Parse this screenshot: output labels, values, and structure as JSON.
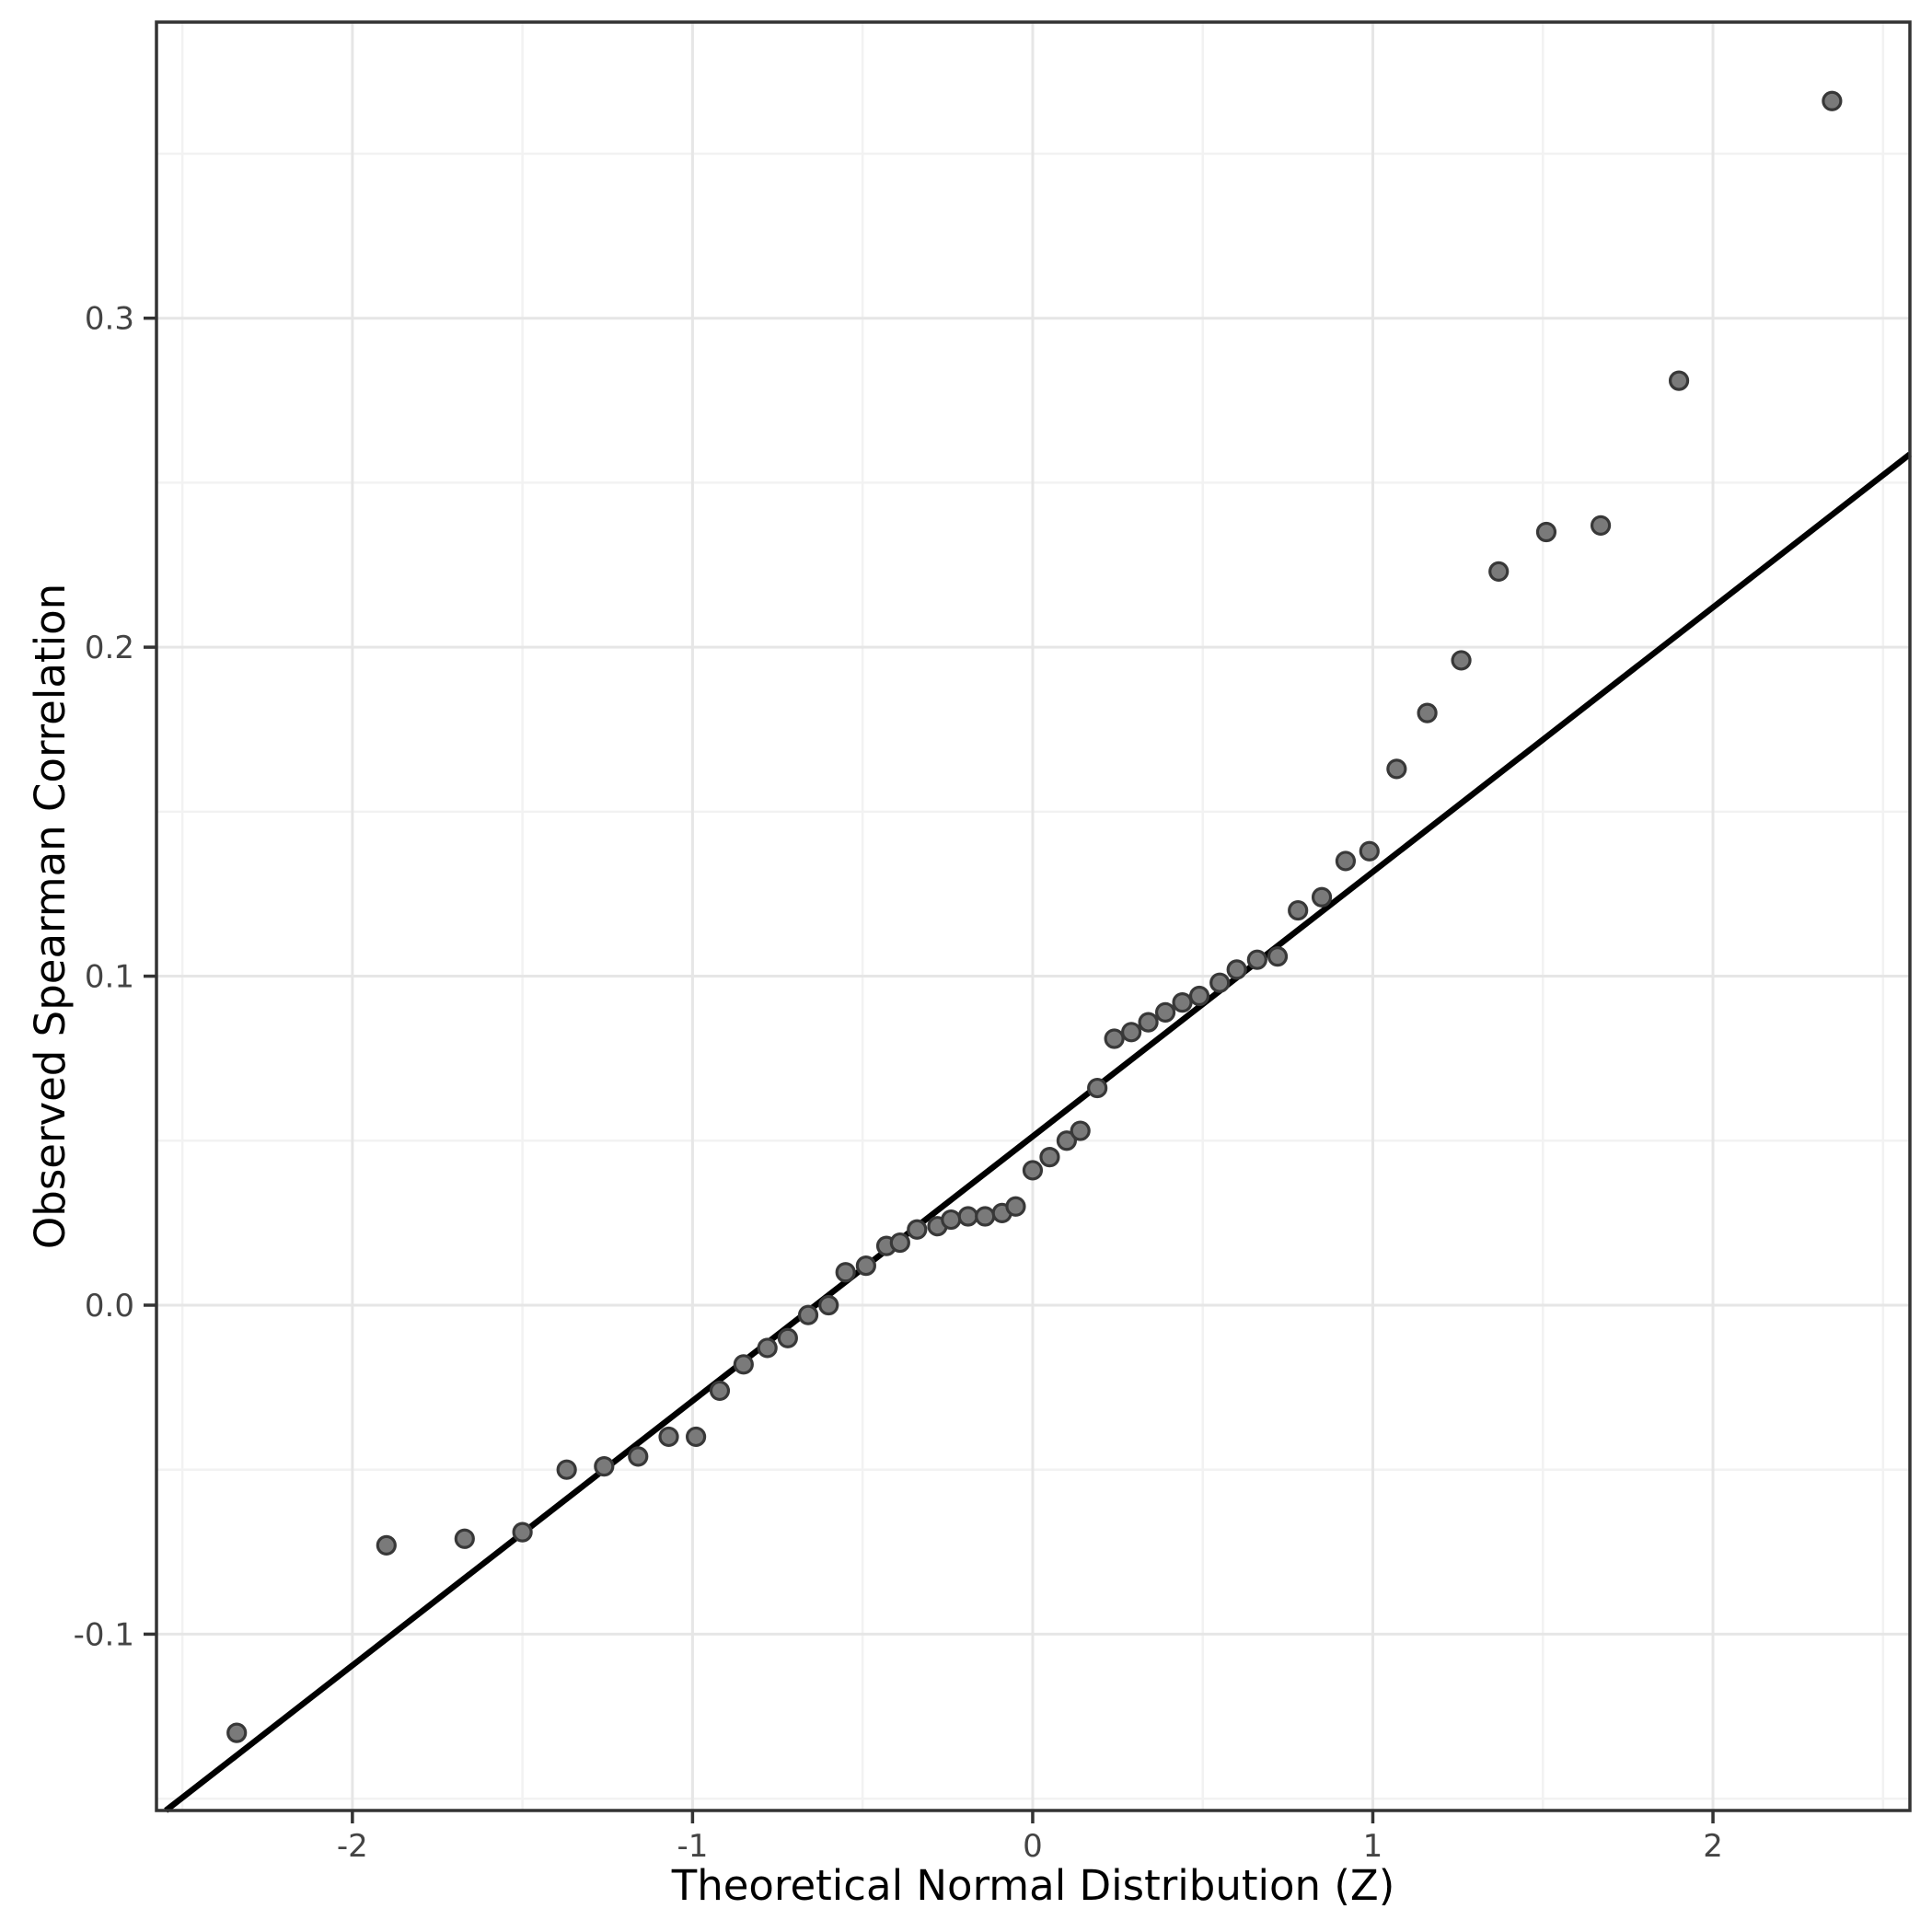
{
  "chart_data": {
    "type": "scatter",
    "title": "",
    "xlabel": "Theoretical Normal Distribution (Z)",
    "ylabel": "Observed Spearman Correlation",
    "xlim": [
      -2.576,
      2.579
    ],
    "ylim": [
      -0.1536,
      0.39
    ],
    "grid": "major+minor",
    "legend": "none",
    "x_tick_values": [
      -2,
      -1,
      0,
      1,
      2
    ],
    "x_tick_labels": [
      "-2",
      "-1",
      "0",
      "1",
      "2"
    ],
    "y_tick_values": [
      -0.1,
      0.0,
      0.1,
      0.2,
      0.3
    ],
    "y_tick_labels": [
      "-0.1",
      "0.0",
      "0.1",
      "0.2",
      "0.3"
    ],
    "x_minor_values": [
      -2.5,
      -1.5,
      -0.5,
      0.5,
      1.5,
      2.5
    ],
    "y_minor_values": [
      -0.15,
      -0.05,
      0.05,
      0.15,
      0.25,
      0.35
    ],
    "reference_line": {
      "intercept": 0.0513,
      "slope": 0.0804
    },
    "points": [
      [
        -2.34,
        -0.13
      ],
      [
        -1.9,
        -0.073
      ],
      [
        -1.67,
        -0.071
      ],
      [
        -1.5,
        -0.069
      ],
      [
        -1.37,
        -0.05
      ],
      [
        -1.26,
        -0.049
      ],
      [
        -1.16,
        -0.046
      ],
      [
        -1.07,
        -0.04
      ],
      [
        -0.99,
        -0.04
      ],
      [
        -0.92,
        -0.026
      ],
      [
        -0.85,
        -0.018
      ],
      [
        -0.78,
        -0.013
      ],
      [
        -0.72,
        -0.01
      ],
      [
        -0.66,
        -0.003
      ],
      [
        -0.6,
        0.0
      ],
      [
        -0.55,
        0.01
      ],
      [
        -0.49,
        0.012
      ],
      [
        -0.43,
        0.018
      ],
      [
        -0.39,
        0.019
      ],
      [
        -0.34,
        0.023
      ],
      [
        -0.28,
        0.024
      ],
      [
        -0.24,
        0.026
      ],
      [
        -0.19,
        0.027
      ],
      [
        -0.14,
        0.027
      ],
      [
        -0.09,
        0.028
      ],
      [
        -0.05,
        0.03
      ],
      [
        0.0,
        0.041
      ],
      [
        0.05,
        0.045
      ],
      [
        0.1,
        0.05
      ],
      [
        0.14,
        0.053
      ],
      [
        0.19,
        0.066
      ],
      [
        0.24,
        0.081
      ],
      [
        0.29,
        0.083
      ],
      [
        0.34,
        0.086
      ],
      [
        0.39,
        0.089
      ],
      [
        0.44,
        0.092
      ],
      [
        0.49,
        0.094
      ],
      [
        0.55,
        0.098
      ],
      [
        0.6,
        0.102
      ],
      [
        0.66,
        0.105
      ],
      [
        0.72,
        0.106
      ],
      [
        0.78,
        0.12
      ],
      [
        0.85,
        0.124
      ],
      [
        0.92,
        0.135
      ],
      [
        0.99,
        0.138
      ],
      [
        1.07,
        0.163
      ],
      [
        1.16,
        0.18
      ],
      [
        1.26,
        0.196
      ],
      [
        1.37,
        0.223
      ],
      [
        1.51,
        0.235
      ],
      [
        1.67,
        0.237
      ],
      [
        1.9,
        0.281
      ],
      [
        2.35,
        0.366
      ]
    ]
  },
  "colors": {
    "background": "#ffffff",
    "panel_background": "#ffffff",
    "panel_border": "#333333",
    "grid_major": "#e6e6e6",
    "grid_minor": "#f2f2f2",
    "reference_line": "#000000",
    "point_fill": "#7a7a7a",
    "point_stroke": "#383838",
    "tick_mark": "#333333",
    "tick_label": "#444444",
    "axis_title": "#000000"
  }
}
